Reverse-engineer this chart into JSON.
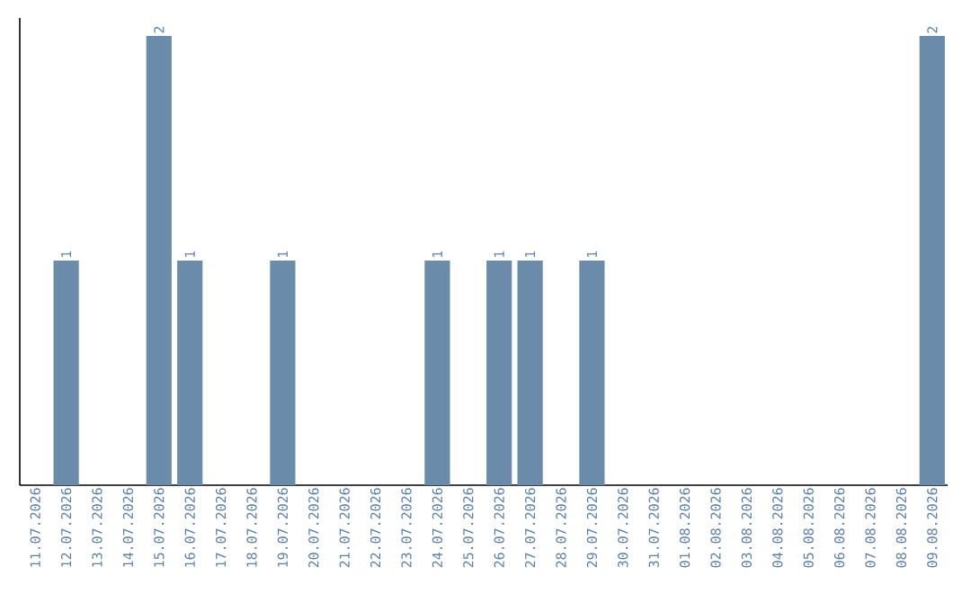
{
  "chart_data": {
    "type": "bar",
    "categories": [
      "11.07.2026",
      "12.07.2026",
      "13.07.2026",
      "14.07.2026",
      "15.07.2026",
      "16.07.2026",
      "17.07.2026",
      "18.07.2026",
      "19.07.2026",
      "20.07.2026",
      "21.07.2026",
      "22.07.2026",
      "23.07.2026",
      "24.07.2026",
      "25.07.2026",
      "26.07.2026",
      "27.07.2026",
      "28.07.2026",
      "29.07.2026",
      "30.07.2026",
      "31.07.2026",
      "01.08.2026",
      "02.08.2026",
      "03.08.2026",
      "04.08.2026",
      "05.08.2026",
      "06.08.2026",
      "07.08.2026",
      "08.08.2026",
      "09.08.2026"
    ],
    "values": [
      0,
      1,
      0,
      0,
      2,
      1,
      0,
      0,
      1,
      0,
      0,
      0,
      0,
      1,
      0,
      1,
      1,
      0,
      1,
      0,
      0,
      0,
      0,
      0,
      0,
      0,
      0,
      0,
      0,
      2
    ],
    "value_labels": [
      null,
      "1",
      null,
      null,
      "2",
      "1",
      null,
      null,
      "1",
      null,
      null,
      null,
      null,
      "1",
      null,
      "1",
      "1",
      null,
      "1",
      null,
      null,
      null,
      null,
      null,
      null,
      null,
      null,
      null,
      null,
      "2"
    ],
    "color": "#6a8caa",
    "ylim": [
      0,
      2.08
    ],
    "tick_labels": "x"
  }
}
